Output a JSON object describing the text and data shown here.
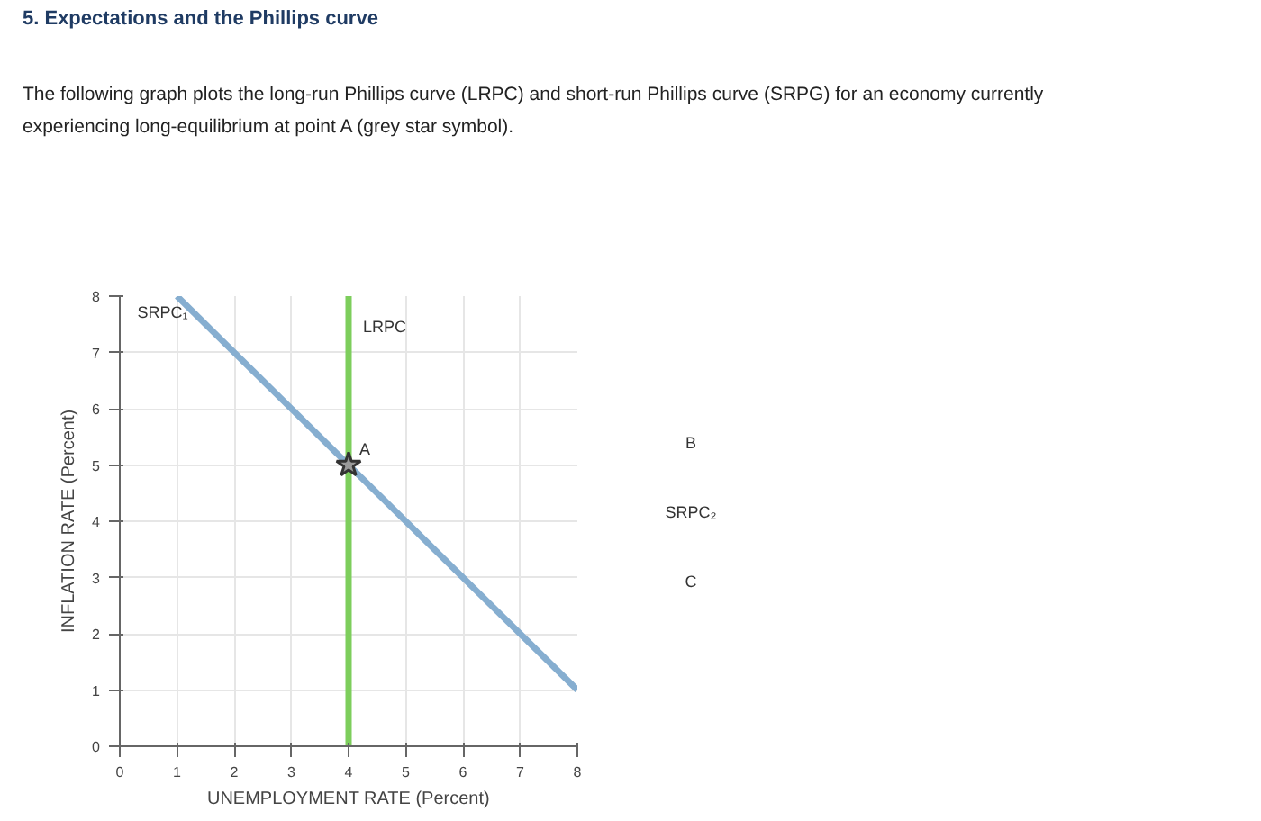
{
  "chart_data": {
    "type": "line",
    "title": "5. Expectations and the Phillips curve",
    "subtitle": "The following graph plots the long-run Phillips curve (LRPC) and short-run Phillips curve (SRPG) for an economy currently experiencing long-equilibrium at point A (grey star symbol).",
    "xlabel": "UNEMPLOYMENT RATE (Percent)",
    "ylabel": "INFLATION RATE (Percent)",
    "series": [
      {
        "name": "SRPC₁",
        "color": "#86aed0",
        "x": [
          1,
          8
        ],
        "values": [
          8,
          1
        ]
      },
      {
        "name": "LRPC",
        "color": "#7dce5c",
        "x": [
          4,
          4
        ],
        "values": [
          0,
          8
        ]
      },
      {
        "name": "A",
        "type": "scatter",
        "color": "#999999",
        "x": [
          4
        ],
        "values": [
          5
        ],
        "marker": "star"
      }
    ],
    "annotations": [
      "B",
      "SRPC₂",
      "C"
    ],
    "xlim": [
      0,
      8
    ],
    "ylim": [
      0,
      8
    ],
    "xticks": [
      0,
      1,
      2,
      3,
      4,
      5,
      6,
      7,
      8
    ],
    "yticks": [
      0,
      1,
      2,
      3,
      4,
      5,
      6,
      7,
      8
    ],
    "grid": true
  }
}
